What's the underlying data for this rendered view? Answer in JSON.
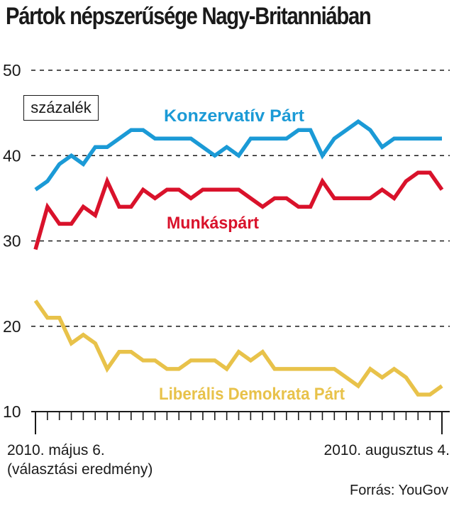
{
  "chart_data": {
    "type": "line",
    "title": "Pártok népszerűsége Nagy-Britanniában",
    "unit_label": "százalék",
    "ylim": [
      10,
      50
    ],
    "yticks": [
      10,
      20,
      30,
      40,
      50
    ],
    "grid": true,
    "x_start_label": "2010. május 6.",
    "x_start_note": "(választási eredmény)",
    "x_end_label": "2010. augusztus 4.",
    "source": "Forrás: YouGov",
    "series": [
      {
        "name": "Konzervatív Párt",
        "color": "#1b9ad6",
        "values": [
          36,
          37,
          39,
          40,
          39,
          41,
          41,
          42,
          43,
          43,
          42,
          42,
          42,
          42,
          41,
          40,
          41,
          40,
          42,
          42,
          42,
          42,
          43,
          43,
          40,
          42,
          43,
          44,
          43,
          41,
          42,
          42,
          42,
          42,
          42
        ]
      },
      {
        "name": "Munkáspárt",
        "color": "#d9122b",
        "values": [
          29,
          34,
          32,
          32,
          34,
          33,
          37,
          34,
          34,
          36,
          35,
          36,
          36,
          35,
          36,
          36,
          36,
          36,
          35,
          34,
          35,
          35,
          34,
          34,
          37,
          35,
          35,
          35,
          35,
          36,
          35,
          37,
          38,
          38,
          36
        ]
      },
      {
        "name": "Liberális Demokrata Párt",
        "color": "#e8c24a",
        "values": [
          23,
          21,
          21,
          18,
          19,
          18,
          15,
          17,
          17,
          16,
          16,
          15,
          15,
          16,
          16,
          16,
          15,
          17,
          16,
          17,
          15,
          15,
          15,
          15,
          15,
          15,
          14,
          13,
          15,
          14,
          15,
          14,
          12,
          12,
          13
        ]
      }
    ]
  }
}
